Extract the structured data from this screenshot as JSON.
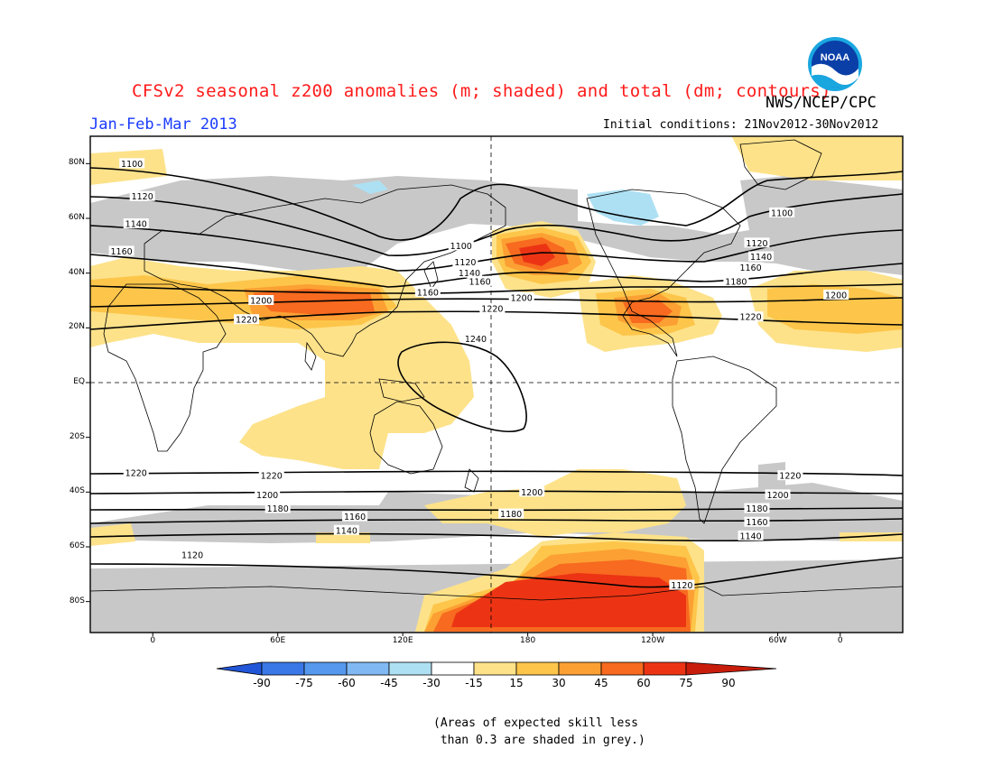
{
  "title": "CFSv2 seasonal z200 anomalies (m; shaded) and total (dm; contours)",
  "agency": "NWS/NCEP/CPC",
  "logo": {
    "text": "NOAA",
    "icon": "noaa-logo"
  },
  "period": "Jan-Feb-Mar 2013",
  "initial_conditions": "Initial conditions: 21Nov2012-30Nov2012",
  "latitude_labels": [
    "80N",
    "60N",
    "40N",
    "20N",
    "EQ",
    "20S",
    "40S",
    "60S",
    "80S"
  ],
  "longitude_labels": [
    "0",
    "60E",
    "120E",
    "180",
    "120W",
    "60W",
    "0"
  ],
  "colorbar": {
    "labels": [
      "-90",
      "-75",
      "-60",
      "-45",
      "-30",
      "-15",
      "15",
      "30",
      "45",
      "60",
      "75",
      "90"
    ],
    "colors": [
      "#2156d8",
      "#3a78e8",
      "#5598ee",
      "#80b8f3",
      "#aee0f3",
      "#ffffff",
      "#fde28a",
      "#fdc64a",
      "#fca033",
      "#f76a1f",
      "#ec3414",
      "#c81d0b"
    ]
  },
  "note": "(Areas of expected skill less\n than 0.3 are shaded in grey.)",
  "contour_labels": [
    {
      "value": "1100",
      "lon": -10,
      "lat": 80
    },
    {
      "value": "1120",
      "lon": -5,
      "lat": 68
    },
    {
      "value": "1140",
      "lon": -8,
      "lat": 58
    },
    {
      "value": "1160",
      "lon": -15,
      "lat": 48
    },
    {
      "value": "1200",
      "lon": 52,
      "lat": 30
    },
    {
      "value": "1220",
      "lon": 45,
      "lat": 23
    },
    {
      "value": "1100",
      "lon": 148,
      "lat": 50
    },
    {
      "value": "1120",
      "lon": 150,
      "lat": 44
    },
    {
      "value": "1140",
      "lon": 152,
      "lat": 40
    },
    {
      "value": "1160",
      "lon": 157,
      "lat": 37
    },
    {
      "value": "1160",
      "lon": 132,
      "lat": 33
    },
    {
      "value": "1200",
      "lon": 177,
      "lat": 31
    },
    {
      "value": "1220",
      "lon": 163,
      "lat": 27
    },
    {
      "value": "1240",
      "lon": 155,
      "lat": 16
    },
    {
      "value": "1100",
      "lon": -58,
      "lat": 62
    },
    {
      "value": "1120",
      "lon": -70,
      "lat": 51
    },
    {
      "value": "1140",
      "lon": -68,
      "lat": 46
    },
    {
      "value": "1160",
      "lon": -73,
      "lat": 42
    },
    {
      "value": "1180",
      "lon": -80,
      "lat": 37
    },
    {
      "value": "1200",
      "lon": -32,
      "lat": 32
    },
    {
      "value": "1220",
      "lon": -73,
      "lat": 24
    },
    {
      "value": "1220",
      "lon": 57,
      "lat": -34
    },
    {
      "value": "1200",
      "lon": 55,
      "lat": -41
    },
    {
      "value": "1180",
      "lon": 60,
      "lat": -46
    },
    {
      "value": "1160",
      "lon": 97,
      "lat": -49
    },
    {
      "value": "1140",
      "lon": 93,
      "lat": -54
    },
    {
      "value": "1120",
      "lon": 19,
      "lat": -63
    },
    {
      "value": "1220",
      "lon": -188,
      "lat": -33
    },
    {
      "value": "1200",
      "lon": 182,
      "lat": -40
    },
    {
      "value": "1180",
      "lon": 172,
      "lat": -48
    },
    {
      "value": "1220",
      "lon": -54,
      "lat": -34
    },
    {
      "value": "1200",
      "lon": -60,
      "lat": -41
    },
    {
      "value": "1180",
      "lon": -70,
      "lat": -46
    },
    {
      "value": "1160",
      "lon": -70,
      "lat": -51
    },
    {
      "value": "1140",
      "lon": -73,
      "lat": -56
    },
    {
      "value": "1120",
      "lon": -106,
      "lat": -74
    }
  ]
}
